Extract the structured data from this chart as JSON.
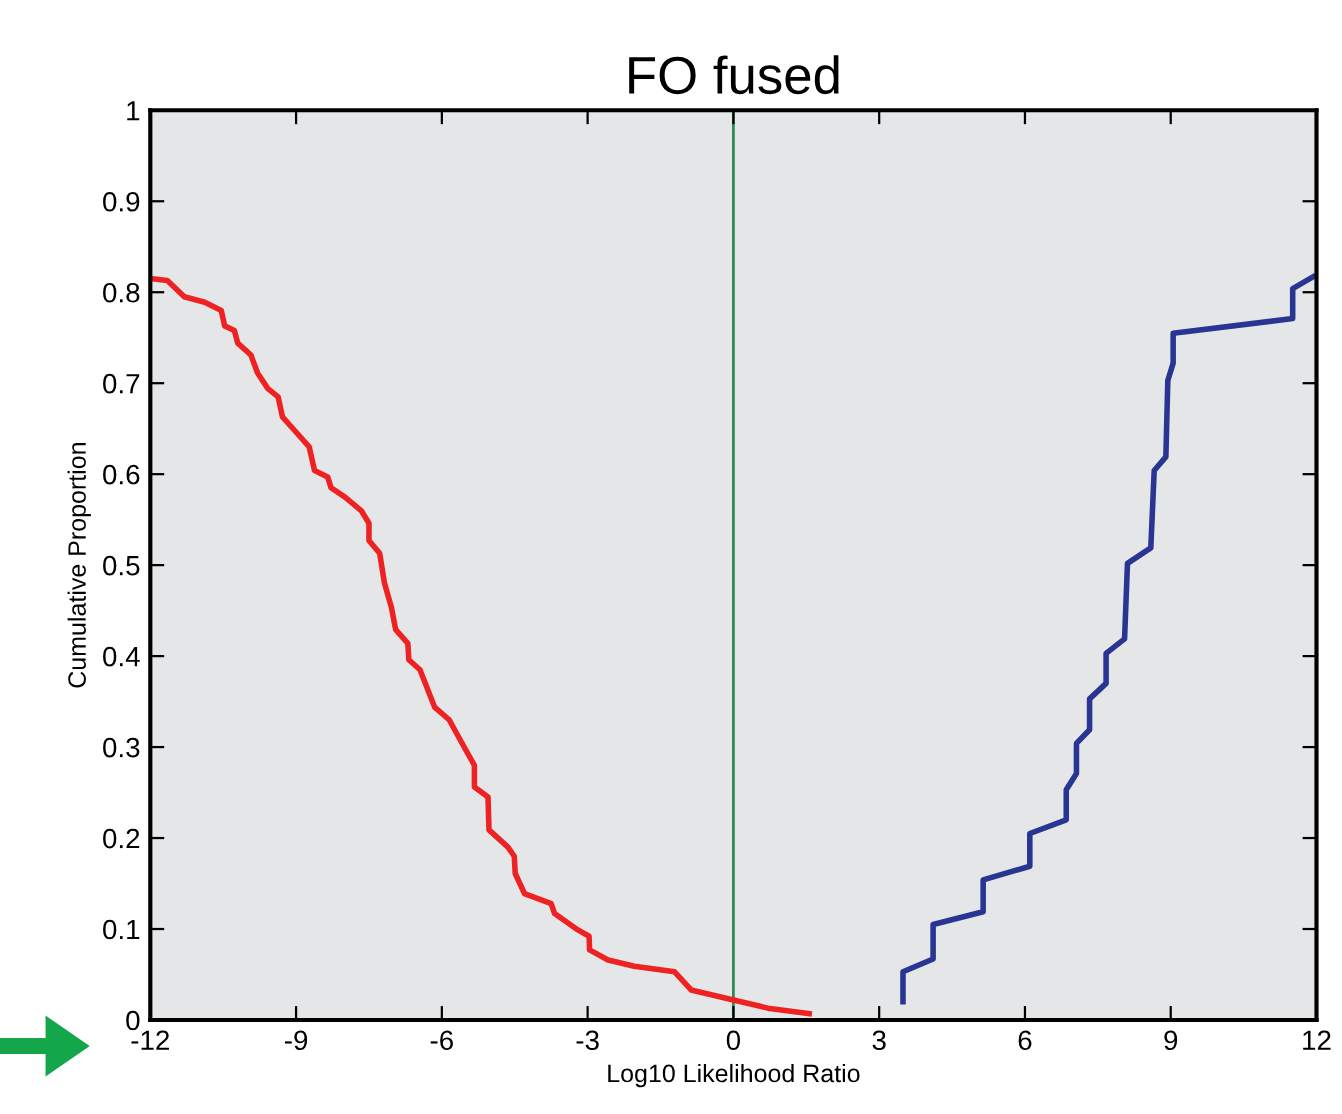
{
  "chart_data": {
    "type": "line",
    "title": "FO fused",
    "xlabel": "Log10 Likelihood Ratio",
    "ylabel": "Cumulative Proportion",
    "xlim": [
      -12,
      12
    ],
    "ylim": [
      0,
      1
    ],
    "xticks": [
      -12,
      -9,
      -6,
      -3,
      0,
      3,
      6,
      9,
      12
    ],
    "yticks": [
      0,
      0.1,
      0.2,
      0.3,
      0.4,
      0.5,
      0.6,
      0.7,
      0.8,
      0.9,
      1
    ],
    "grid": false,
    "legend": false,
    "marker": "none",
    "line_style": "solid",
    "ref_lines": [
      {
        "axis": "x",
        "value": 0,
        "color": "#2e8b57"
      }
    ],
    "series": [
      {
        "color": "#ee2222",
        "x": [
          -12,
          -11.65,
          -11.3,
          -10.88,
          -10.54,
          -10.47,
          -10.27,
          -10.2,
          -9.93,
          -9.79,
          -9.58,
          -9.37,
          -9.28,
          -9.03,
          -8.73,
          -8.62,
          -8.35,
          -8.28,
          -8,
          -7.66,
          -7.5,
          -7.5,
          -7.28,
          -7.18,
          -7.04,
          -6.95,
          -6.7,
          -6.68,
          -6.45,
          -6.15,
          -5.85,
          -5.53,
          -5.33,
          -5.33,
          -5.05,
          -5.03,
          -4.64,
          -4.51,
          -4.49,
          -4.3,
          -3.75,
          -3.68,
          -3.2,
          -2.97,
          -2.96,
          -2.58,
          -2.04,
          -1.21,
          -0.87,
          0,
          0.71,
          1.56
        ],
        "values": [
          0.815,
          0.813,
          0.795,
          0.789,
          0.78,
          0.763,
          0.758,
          0.744,
          0.731,
          0.711,
          0.694,
          0.685,
          0.663,
          0.648,
          0.63,
          0.604,
          0.597,
          0.585,
          0.575,
          0.56,
          0.546,
          0.527,
          0.513,
          0.48,
          0.454,
          0.429,
          0.414,
          0.396,
          0.385,
          0.344,
          0.33,
          0.299,
          0.28,
          0.256,
          0.245,
          0.209,
          0.19,
          0.18,
          0.161,
          0.139,
          0.128,
          0.117,
          0.099,
          0.092,
          0.077,
          0.066,
          0.059,
          0.053,
          0.033,
          0.022,
          0.013,
          0.007
        ]
      },
      {
        "color": "#283593",
        "x": [
          3.49,
          3.49,
          4.11,
          4.11,
          5.14,
          5.14,
          6.1,
          6.1,
          6.85,
          6.85,
          7.06,
          7.06,
          7.33,
          7.33,
          7.67,
          7.67,
          8.05,
          8.11,
          8.59,
          8.66,
          8.9,
          8.94,
          9.05,
          9.05,
          11.51,
          11.51,
          11.93
        ],
        "values": [
          0.02,
          0.053,
          0.067,
          0.105,
          0.119,
          0.154,
          0.169,
          0.205,
          0.22,
          0.253,
          0.271,
          0.304,
          0.319,
          0.353,
          0.37,
          0.403,
          0.419,
          0.502,
          0.519,
          0.604,
          0.619,
          0.703,
          0.722,
          0.755,
          0.771,
          0.804,
          0.817
        ]
      }
    ]
  }
}
